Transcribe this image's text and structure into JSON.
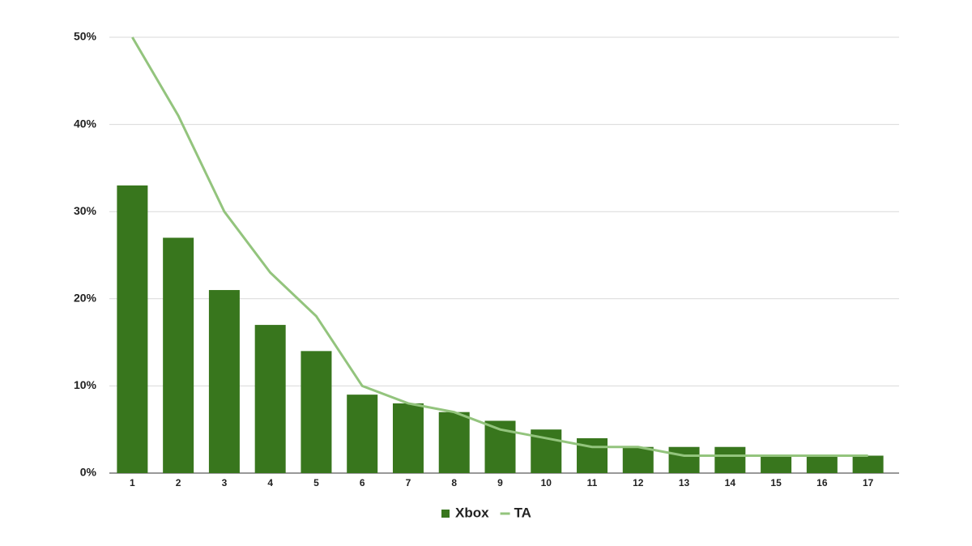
{
  "chart_data": {
    "type": "bar",
    "categories": [
      "1",
      "2",
      "3",
      "4",
      "5",
      "6",
      "7",
      "8",
      "9",
      "10",
      "11",
      "12",
      "13",
      "14",
      "15",
      "16",
      "17"
    ],
    "series": [
      {
        "name": "Xbox",
        "type": "bar",
        "color": "#38761d",
        "values": [
          33,
          27,
          21,
          17,
          14,
          9,
          8,
          7,
          6,
          5,
          4,
          3,
          3,
          3,
          2,
          2,
          2
        ]
      },
      {
        "name": "TA",
        "type": "line",
        "color": "#93c47d",
        "values": [
          50,
          41,
          30,
          23,
          18,
          10,
          8,
          7,
          5,
          4,
          3,
          3,
          2,
          2,
          2,
          2,
          2
        ]
      }
    ],
    "ylim": [
      0,
      50
    ],
    "yticks": [
      {
        "value": 0,
        "label": "0%"
      },
      {
        "value": 10,
        "label": "10%"
      },
      {
        "value": 20,
        "label": "20%"
      },
      {
        "value": 30,
        "label": "30%"
      },
      {
        "value": 40,
        "label": "40%"
      },
      {
        "value": 50,
        "label": "50%"
      }
    ],
    "grid": true,
    "legend": "bottom"
  }
}
